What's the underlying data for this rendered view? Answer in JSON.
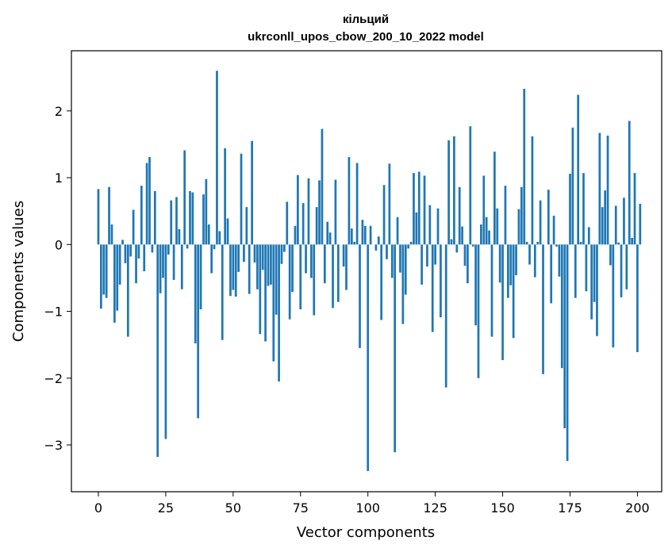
{
  "chart_data": {
    "type": "bar",
    "title": "кільций",
    "subtitle": "ukrconll_upos_cbow_200_10_2022 model",
    "xlabel": "Vector components",
    "ylabel": "Components values",
    "xlim": [
      -10,
      209
    ],
    "ylim": [
      -3.7,
      2.9
    ],
    "xticks": [
      0,
      25,
      50,
      75,
      100,
      125,
      150,
      175,
      200
    ],
    "yticks": [
      -3,
      -2,
      -1,
      0,
      1,
      2
    ],
    "bar_color": "#1f77b4",
    "grid": false,
    "values": [
      0.83,
      -0.96,
      -0.75,
      -0.8,
      0.86,
      0.3,
      -1.17,
      -0.99,
      -0.6,
      0.07,
      -0.28,
      -1.38,
      -0.18,
      0.52,
      -0.58,
      -0.21,
      0.88,
      -0.4,
      1.22,
      1.31,
      -0.12,
      0.8,
      -3.18,
      -0.73,
      -0.5,
      -2.91,
      -0.15,
      0.66,
      -0.53,
      0.71,
      0.23,
      -0.67,
      1.41,
      -0.06,
      0.8,
      0.78,
      -1.48,
      -2.6,
      -0.97,
      0.75,
      0.98,
      0.3,
      -0.43,
      -0.07,
      2.6,
      0.2,
      -1.43,
      1.44,
      0.39,
      -0.77,
      -0.68,
      -0.78,
      -0.41,
      1.36,
      -0.26,
      0.56,
      -0.74,
      1.55,
      -0.27,
      -0.67,
      -1.34,
      -0.38,
      -1.45,
      -0.62,
      -0.6,
      -1.75,
      -1.05,
      -2.05,
      -0.29,
      -0.11,
      0.64,
      -1.12,
      -0.71,
      0.28,
      1.04,
      -0.97,
      0.62,
      -0.43,
      0.99,
      -0.5,
      -1.06,
      0.56,
      0.96,
      1.73,
      -0.58,
      0.34,
      0.18,
      -0.95,
      0.97,
      -0.86,
      0.0,
      -0.33,
      -0.68,
      1.31,
      0.24,
      0.04,
      1.22,
      -1.55,
      0.37,
      0.28,
      -3.39,
      0.28,
      0.0,
      -0.09,
      0.12,
      -1.13,
      0.89,
      -0.22,
      1.21,
      -0.5,
      -3.11,
      0.41,
      -0.42,
      -1.19,
      -0.75,
      -0.06,
      0.04,
      1.07,
      0.48,
      1.09,
      -0.6,
      1.03,
      -0.33,
      0.59,
      -1.31,
      -0.3,
      0.54,
      -1.09,
      0.0,
      -2.14,
      1.56,
      0.08,
      1.62,
      -0.12,
      0.86,
      0.27,
      -0.32,
      -0.58,
      1.77,
      -0.03,
      -1.21,
      -2.0,
      0.3,
      1.03,
      0.41,
      0.21,
      -1.38,
      1.39,
      0.54,
      -0.57,
      -1.73,
      0.88,
      -0.8,
      -0.61,
      -1.4,
      -0.46,
      0.53,
      0.86,
      2.33,
      0.04,
      -0.3,
      1.62,
      -0.49,
      0.04,
      0.66,
      -1.94,
      0.0,
      0.82,
      -0.88,
      0.43,
      -0.03,
      -0.48,
      -1.85,
      -2.75,
      -3.24,
      1.06,
      1.75,
      -0.8,
      2.24,
      0.04,
      1.07,
      -0.7,
      0.26,
      -1.12,
      -0.86,
      -1.37,
      1.67,
      0.56,
      0.81,
      1.63,
      -0.31,
      -1.54,
      0.58,
      0.03,
      -0.79,
      0.7,
      -0.67,
      1.85,
      0.1,
      1.07,
      -1.61,
      0.61
    ]
  }
}
